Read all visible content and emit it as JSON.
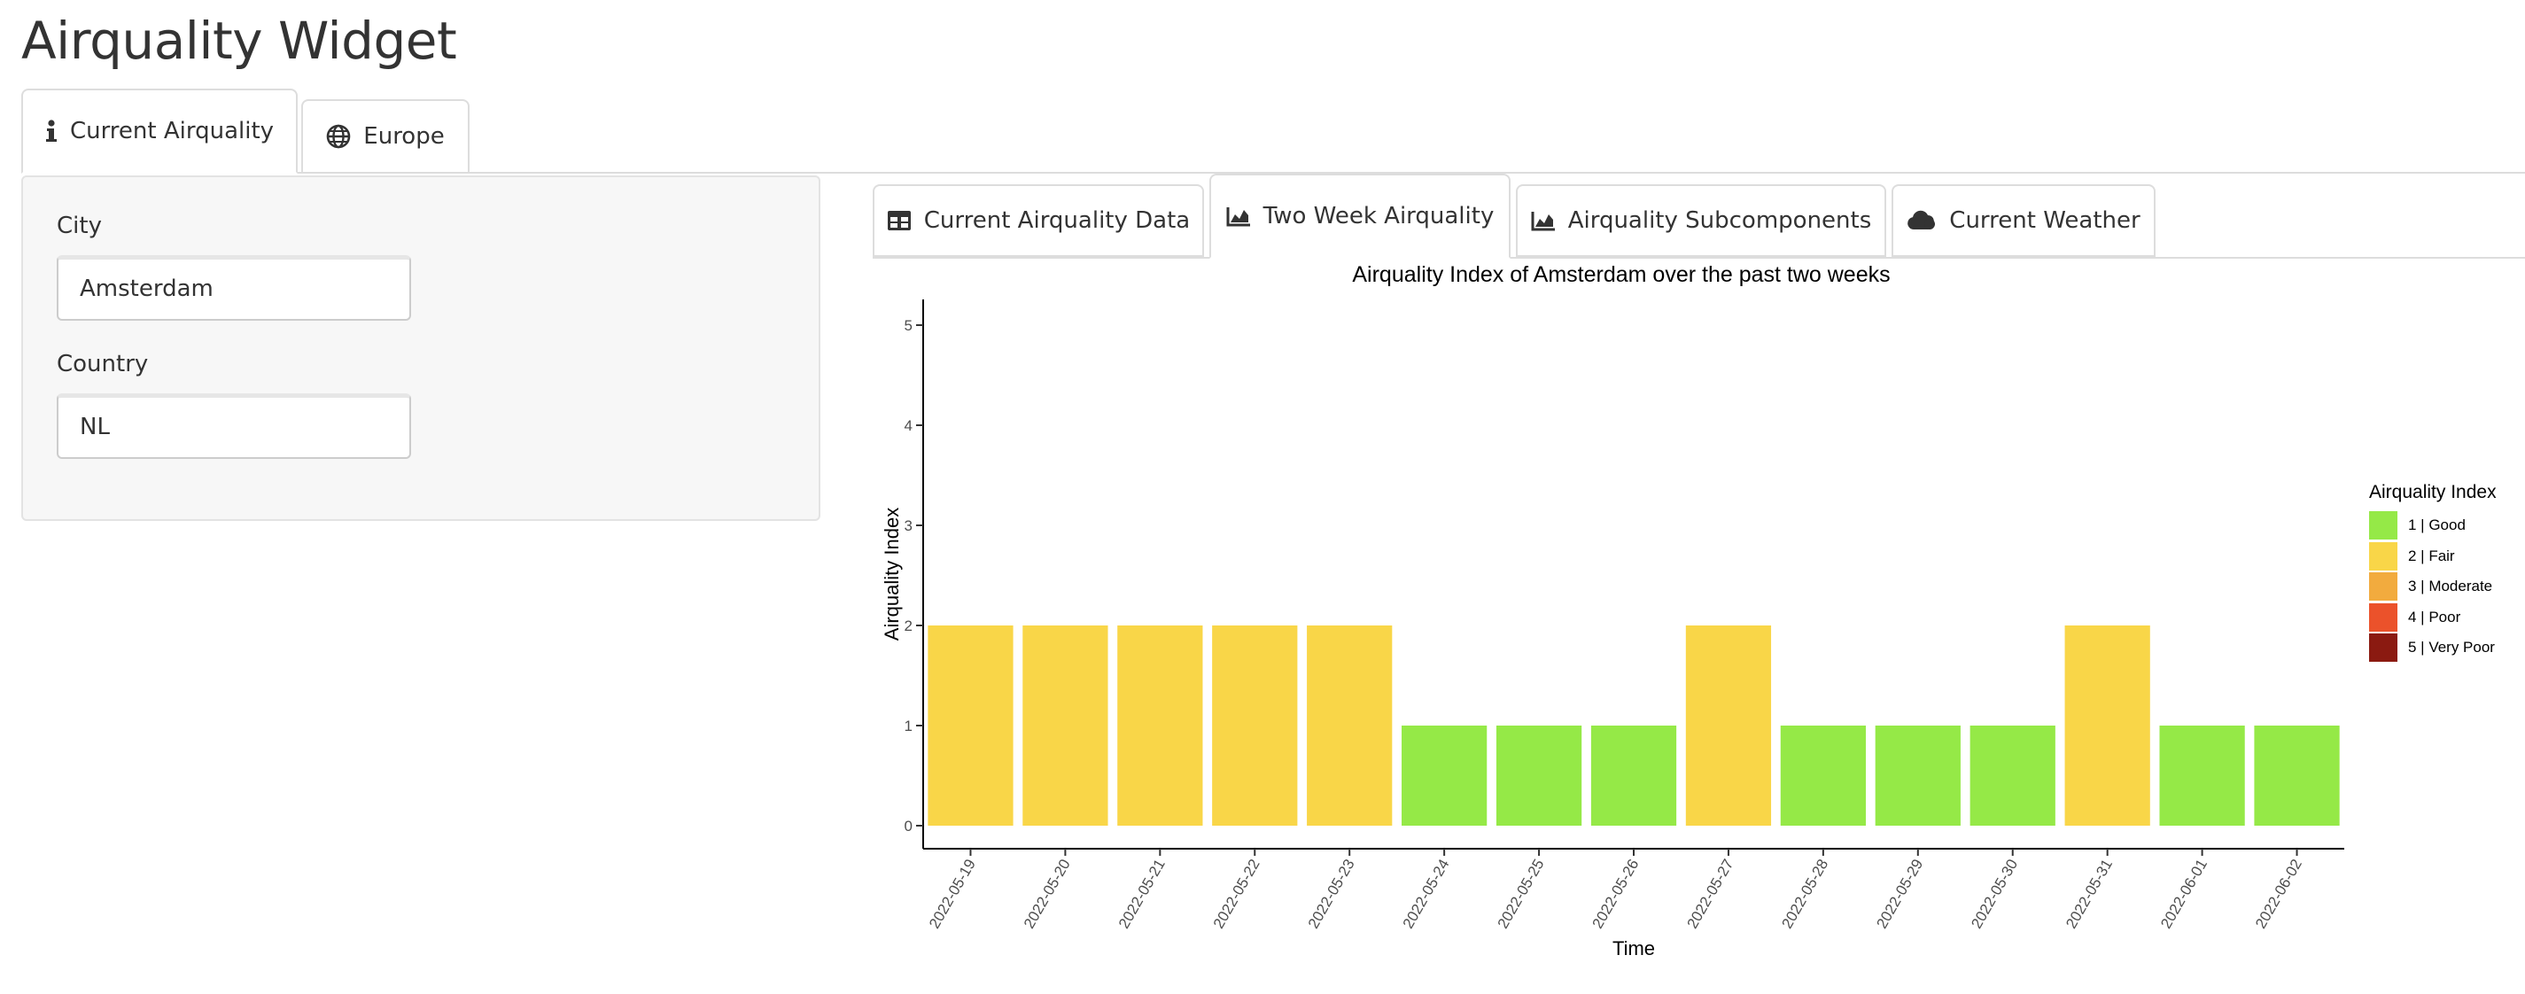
{
  "app": {
    "title": "Airquality Widget"
  },
  "top_tabs": [
    {
      "label": "Current Airquality",
      "icon": "info-icon",
      "active": true
    },
    {
      "label": "Europe",
      "icon": "globe-icon",
      "active": false
    }
  ],
  "sidebar": {
    "city": {
      "label": "City",
      "value": "Amsterdam"
    },
    "country": {
      "label": "Country",
      "value": "NL"
    }
  },
  "sub_tabs": [
    {
      "label": "Current Airquality Data",
      "icon": "table-icon",
      "active": false
    },
    {
      "label": "Two Week Airquality",
      "icon": "area-chart-icon",
      "active": true
    },
    {
      "label": "Airquality Subcomponents",
      "icon": "area-chart-icon",
      "active": false
    },
    {
      "label": "Current Weather",
      "icon": "cloud-icon",
      "active": false
    }
  ],
  "chart_data": {
    "type": "bar",
    "title": "Airquality Index of Amsterdam over the past two weeks",
    "xlabel": "Time",
    "ylabel": "Airquality Index",
    "ylim": [
      0,
      5.2
    ],
    "yticks": [
      "0",
      "1",
      "2",
      "3",
      "4",
      "5"
    ],
    "categories": [
      "2022-05-19",
      "2022-05-20",
      "2022-05-21",
      "2022-05-22",
      "2022-05-23",
      "2022-05-24",
      "2022-05-25",
      "2022-05-26",
      "2022-05-27",
      "2022-05-28",
      "2022-05-29",
      "2022-05-30",
      "2022-05-31",
      "2022-06-01",
      "2022-06-02"
    ],
    "values": [
      2,
      2,
      2,
      2,
      2,
      1,
      1,
      1,
      2,
      1,
      1,
      1,
      2,
      1,
      1
    ],
    "grid": false,
    "legend": {
      "title": "Airquality Index",
      "placement": "right",
      "items": [
        {
          "label": "1 | Good",
          "color": "#95e947"
        },
        {
          "label": "2 | Fair",
          "color": "#f9d648"
        },
        {
          "label": "3 | Moderate",
          "color": "#f2ab3e"
        },
        {
          "label": "4 | Poor",
          "color": "#eb522b"
        },
        {
          "label": "5 | Very Poor",
          "color": "#8b1a11"
        }
      ]
    }
  }
}
